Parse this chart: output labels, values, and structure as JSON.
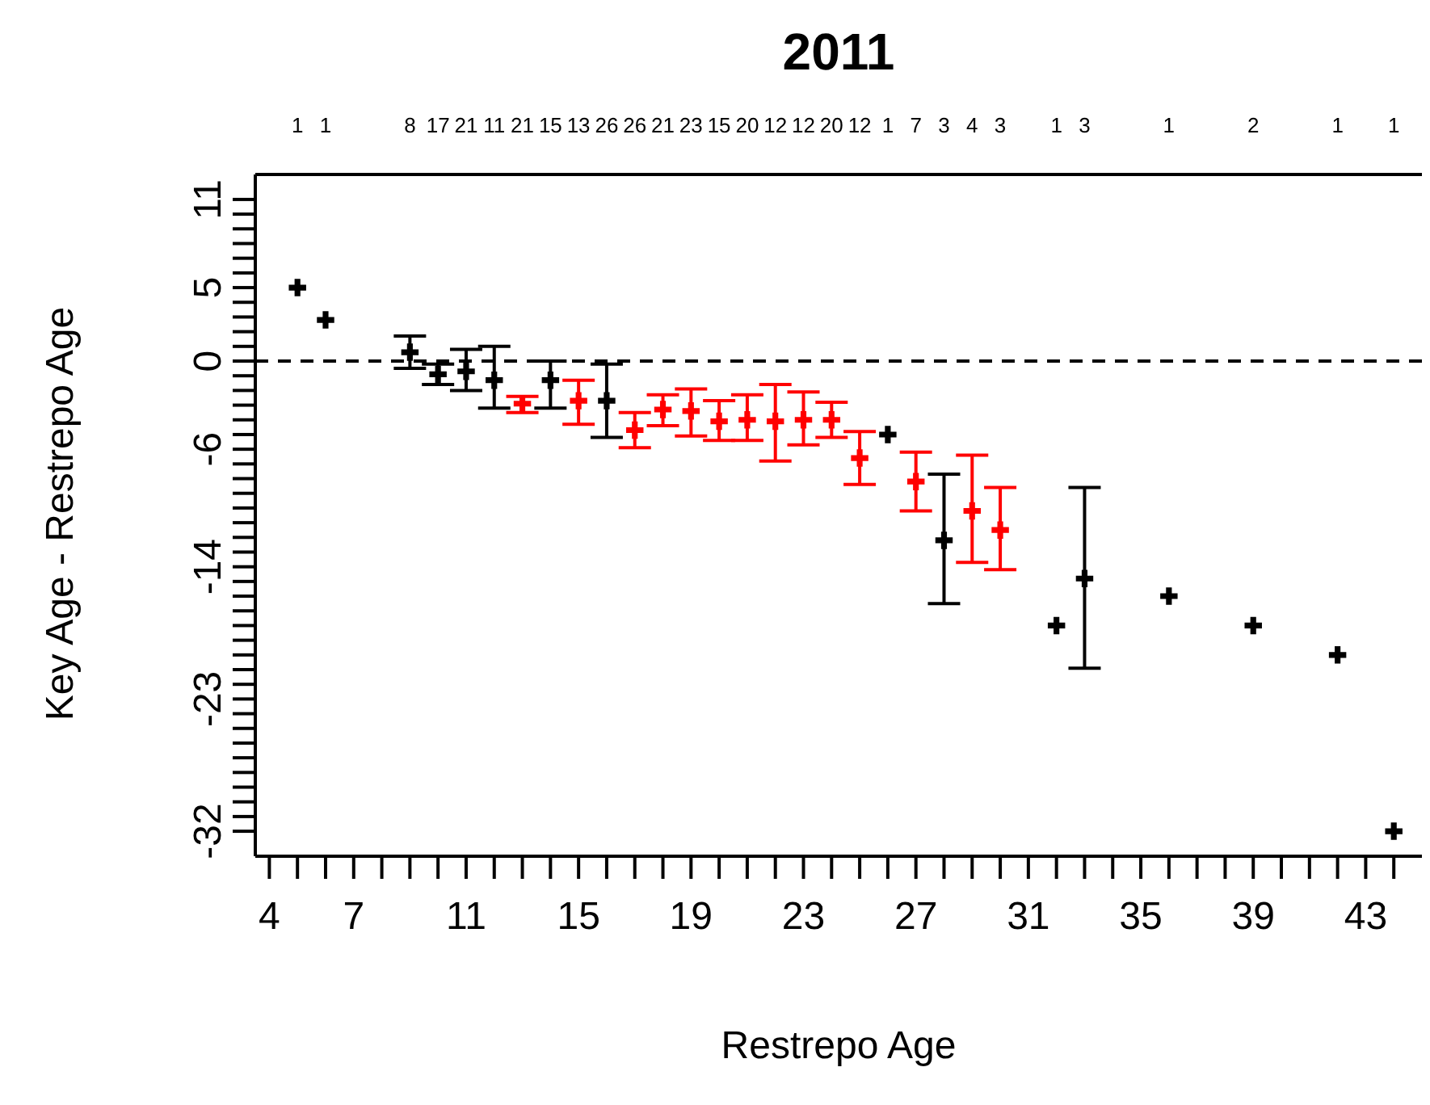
{
  "chart_data": {
    "type": "scatter",
    "title": "2011",
    "xlabel": "Restrepo Age",
    "ylabel": "Key Age - Restrepo Age",
    "marker": "cross",
    "grid": false,
    "series": [
      {
        "color": "#000000",
        "x": [
          5,
          6,
          9,
          10,
          11,
          12,
          14,
          16,
          26,
          28,
          32,
          33,
          36,
          39,
          42,
          44
        ],
        "values": [
          5,
          2.8,
          0.6,
          -0.9,
          -0.7,
          -1.3,
          -1.3,
          -2.7,
          -5,
          -12.2,
          -18,
          -14.8,
          -16,
          -18,
          -20,
          -32
        ],
        "errors": [
          null,
          null,
          [
            -0.5,
            1.7
          ],
          [
            -1.6,
            -0.2
          ],
          [
            -2,
            0.8
          ],
          [
            -3.2,
            1
          ],
          [
            -3.2,
            0
          ],
          [
            -5.2,
            -0.2
          ],
          null,
          [
            -16.5,
            -7.7
          ],
          null,
          [
            -20.9,
            -8.6
          ],
          null,
          null,
          null,
          null
        ]
      },
      {
        "color": "#ff0000",
        "x": [
          13,
          15,
          17,
          18,
          19,
          20,
          21,
          22,
          23,
          24,
          25,
          27,
          29,
          30
        ],
        "values": [
          -2.9,
          -2.7,
          -4.7,
          -3.3,
          -3.4,
          -4.1,
          -4,
          -4.1,
          -4,
          -4,
          -6.6,
          -8.2,
          -10.2,
          -11.5
        ],
        "errors": [
          [
            -3.5,
            -2.4
          ],
          [
            -4.3,
            -1.3
          ],
          [
            -5.9,
            -3.5
          ],
          [
            -4.4,
            -2.3
          ],
          [
            -5.1,
            -1.9
          ],
          [
            -5.4,
            -2.7
          ],
          [
            -5.4,
            -2.3
          ],
          [
            -6.8,
            -1.6
          ],
          [
            -5.7,
            -2.1
          ],
          [
            -5.2,
            -2.8
          ],
          [
            -8.4,
            -4.8
          ],
          [
            -10.2,
            -6.2
          ],
          [
            -13.7,
            -6.4
          ],
          [
            -14.2,
            -8.6
          ]
        ]
      }
    ],
    "ref_lines": [
      {
        "axis": "y",
        "value": 0,
        "line_style": "dashed",
        "color": "#000000"
      }
    ],
    "xlim": [
      3.5,
      45
    ],
    "ylim": [
      -33.7,
      12.7
    ],
    "xticks": [
      4,
      {
        "value": 5,
        "label": null
      },
      {
        "value": 6,
        "label": null
      },
      7,
      {
        "value": 8,
        "label": null
      },
      {
        "value": 9,
        "label": null
      },
      {
        "value": 10,
        "label": null
      },
      11,
      {
        "value": 12,
        "label": null
      },
      {
        "value": 13,
        "label": null
      },
      {
        "value": 14,
        "label": null
      },
      15,
      {
        "value": 16,
        "label": null
      },
      {
        "value": 17,
        "label": null
      },
      {
        "value": 18,
        "label": null
      },
      19,
      {
        "value": 20,
        "label": null
      },
      {
        "value": 21,
        "label": null
      },
      {
        "value": 22,
        "label": null
      },
      23,
      {
        "value": 24,
        "label": null
      },
      {
        "value": 25,
        "label": null
      },
      {
        "value": 26,
        "label": null
      },
      27,
      {
        "value": 28,
        "label": null
      },
      {
        "value": 29,
        "label": null
      },
      {
        "value": 30,
        "label": null
      },
      31,
      {
        "value": 32,
        "label": null
      },
      {
        "value": 33,
        "label": null
      },
      {
        "value": 34,
        "label": null
      },
      35,
      {
        "value": 36,
        "label": null
      },
      {
        "value": 37,
        "label": null
      },
      {
        "value": 38,
        "label": null
      },
      39,
      {
        "value": 40,
        "label": null
      },
      {
        "value": 41,
        "label": null
      },
      {
        "value": 42,
        "label": null
      },
      43,
      {
        "value": 44,
        "label": null
      }
    ],
    "yticks": [
      -32,
      {
        "value": -31,
        "label": null
      },
      {
        "value": -30,
        "label": null
      },
      {
        "value": -29,
        "label": null
      },
      {
        "value": -28,
        "label": null
      },
      {
        "value": -27,
        "label": null
      },
      {
        "value": -26,
        "label": null
      },
      {
        "value": -25,
        "label": null
      },
      {
        "value": -24,
        "label": null
      },
      -23,
      {
        "value": -22,
        "label": null
      },
      {
        "value": -21,
        "label": null
      },
      {
        "value": -20,
        "label": null
      },
      {
        "value": -19,
        "label": null
      },
      {
        "value": -18,
        "label": null
      },
      {
        "value": -17,
        "label": null
      },
      {
        "value": -16,
        "label": null
      },
      {
        "value": -15,
        "label": null
      },
      -14,
      {
        "value": -13,
        "label": null
      },
      {
        "value": -12,
        "label": null
      },
      {
        "value": -11,
        "label": null
      },
      {
        "value": -10,
        "label": null
      },
      {
        "value": -9,
        "label": null
      },
      {
        "value": -8,
        "label": null
      },
      {
        "value": -7,
        "label": null
      },
      -6,
      {
        "value": -5,
        "label": null
      },
      {
        "value": -4,
        "label": null
      },
      {
        "value": -3,
        "label": null
      },
      {
        "value": -2,
        "label": null
      },
      {
        "value": -1,
        "label": null
      },
      0,
      {
        "value": 1,
        "label": null
      },
      {
        "value": 2,
        "label": null
      },
      {
        "value": 3,
        "label": null
      },
      {
        "value": 4,
        "label": null
      },
      5,
      {
        "value": 6,
        "label": null
      },
      {
        "value": 7,
        "label": null
      },
      {
        "value": 8,
        "label": null
      },
      {
        "value": 9,
        "label": null
      },
      {
        "value": 10,
        "label": null
      },
      11
    ],
    "annotations": [
      "1",
      "1",
      "8",
      "17",
      "21",
      "11",
      "21",
      "15",
      "13",
      "26",
      "26",
      "21",
      "23",
      "15",
      "20",
      "12",
      "12",
      "20",
      "12",
      "1",
      "7",
      "3",
      "4",
      "3",
      "1",
      "3",
      "1",
      "2",
      "1",
      "1"
    ]
  }
}
